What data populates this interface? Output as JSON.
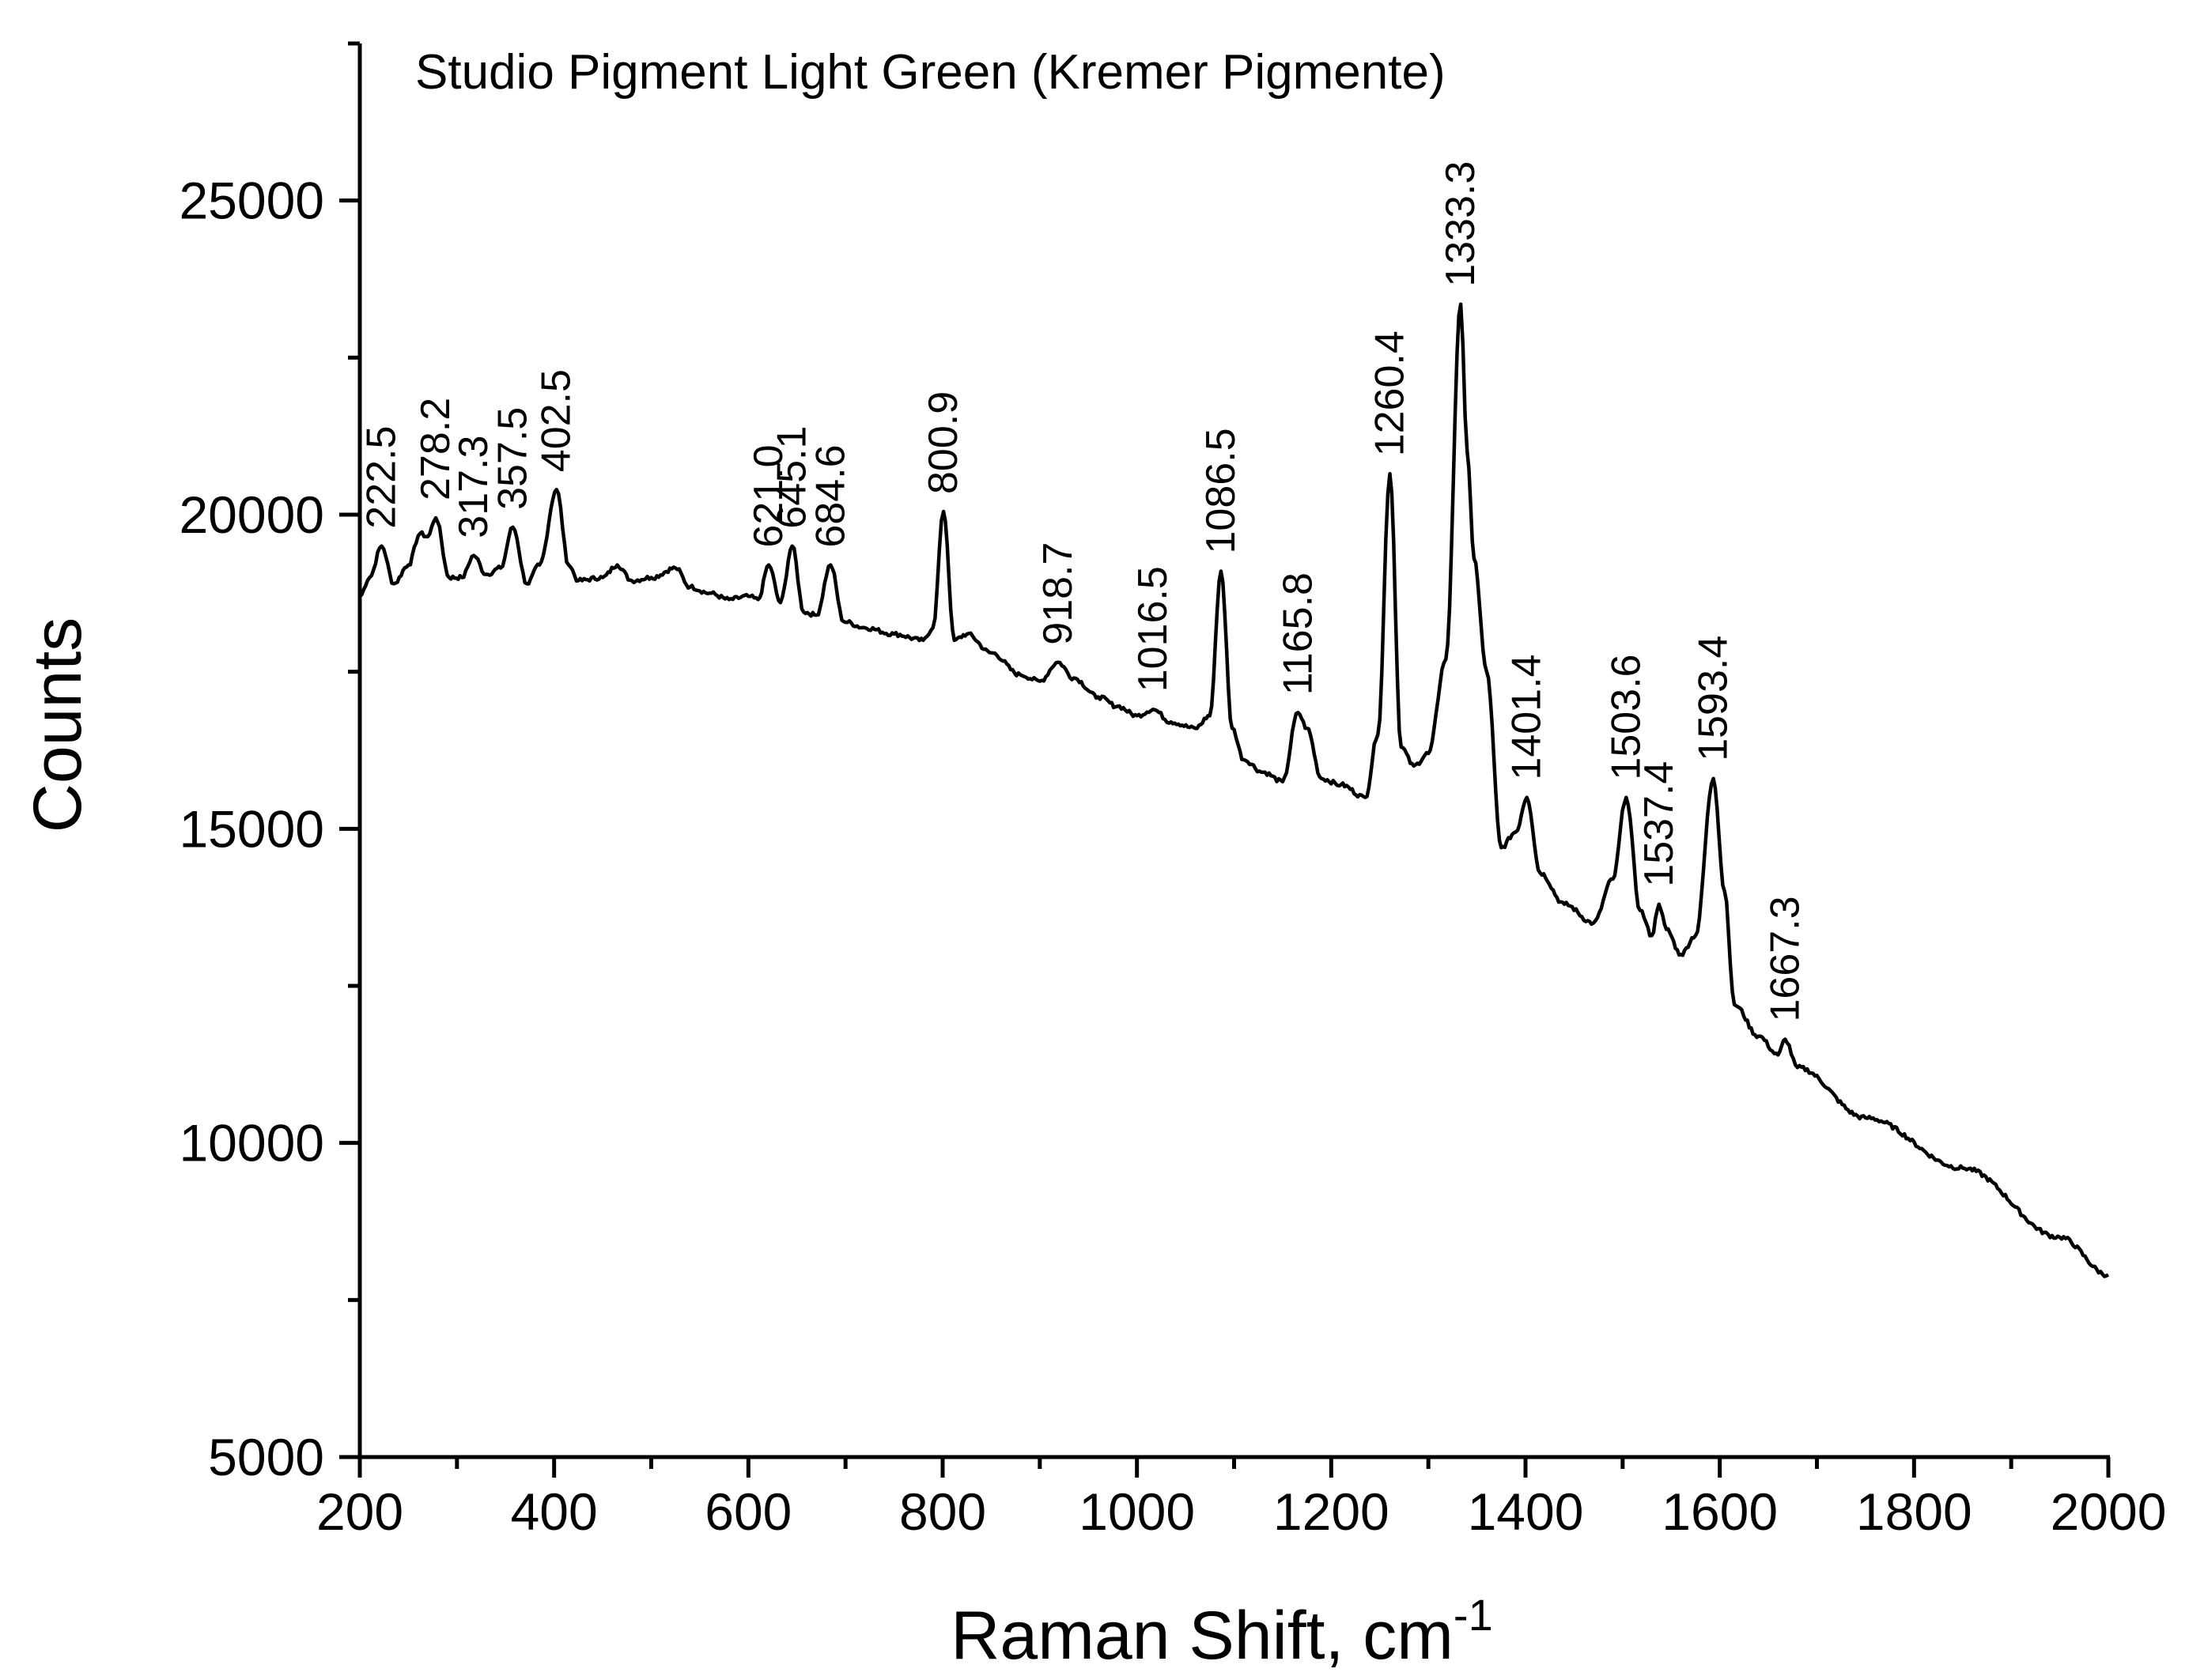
{
  "chart_data": {
    "type": "line",
    "title": "Studio Pigment Light Green (Kremer Pigmente)",
    "xlabel": "Raman Shift, cm",
    "xlabel_superscript": "-1",
    "ylabel": "Counts",
    "xlim": [
      200,
      2000
    ],
    "ylim": [
      5000,
      27500
    ],
    "x_ticks": [
      200,
      400,
      600,
      800,
      1000,
      1200,
      1400,
      1600,
      1800,
      2000
    ],
    "x_tick_labels": [
      "200",
      "400",
      "600",
      "800",
      "1000",
      "1200",
      "1400",
      "1600",
      "1800",
      "2000"
    ],
    "y_ticks": [
      5000,
      10000,
      15000,
      20000,
      25000
    ],
    "y_tick_labels": [
      "5000",
      "10000",
      "15000",
      "20000",
      "25000"
    ],
    "x_minor_step": 100,
    "y_minor_step": 2500,
    "grid": false,
    "legend": "none",
    "line_color": "#000000",
    "series": [
      {
        "x": [
          200,
          210,
          222.5,
          235,
          250,
          262,
          270,
          278.2,
          292,
          305,
          317.3,
          330,
          345,
          357.5,
          372,
          385,
          402.5,
          415,
          425,
          450,
          465,
          480,
          500,
          525,
          540,
          560,
          580,
          600,
          610,
          621,
          633,
          645.1,
          657,
          670,
          684.6,
          698,
          720,
          750,
          780,
          790,
          800.9,
          812,
          825,
          850,
          880,
          900,
          918.7,
          935,
          960,
          980,
          1000,
          1016.5,
          1035,
          1060,
          1075,
          1086.5,
          1098,
          1110,
          1130,
          1150,
          1165.8,
          1175,
          1190,
          1210,
          1235,
          1248,
          1260.4,
          1272,
          1285,
          1300,
          1318,
          1333.3,
          1340,
          1347,
          1360,
          1375,
          1390,
          1401.4,
          1415,
          1440,
          1470,
          1490,
          1503.6,
          1518,
          1530,
          1537.4,
          1545,
          1560,
          1575,
          1593.4,
          1605,
          1615,
          1640,
          1660,
          1667.3,
          1680,
          1750,
          1850,
          1950,
          2000
        ],
        "y": [
          18700,
          19000,
          19500,
          18900,
          19200,
          19700,
          19650,
          19950,
          19000,
          19000,
          19350,
          19050,
          19150,
          19800,
          18900,
          19200,
          20400,
          19200,
          18950,
          19000,
          19200,
          18950,
          19000,
          19150,
          18850,
          18750,
          18650,
          18700,
          18650,
          19200,
          18600,
          19500,
          18450,
          18400,
          19200,
          18300,
          18200,
          18100,
          18000,
          18200,
          20050,
          18000,
          18100,
          17800,
          17450,
          17350,
          17650,
          17400,
          17100,
          16950,
          16800,
          16900,
          16700,
          16600,
          16800,
          19100,
          16600,
          16100,
          15900,
          15750,
          16850,
          16600,
          15800,
          15700,
          15500,
          16500,
          20650,
          16300,
          16000,
          16200,
          17700,
          23350,
          21000,
          19300,
          17500,
          14700,
          14950,
          15500,
          14300,
          13800,
          13500,
          14200,
          15500,
          13700,
          13300,
          13800,
          13400,
          13000,
          13300,
          15800,
          14000,
          12200,
          11700,
          11400,
          11650,
          11200,
          10400,
          9600,
          8500,
          7900
        ]
      }
    ],
    "annotations": [
      {
        "label": "222.5",
        "x": 222.5,
        "y": 19500
      },
      {
        "label": "278.2",
        "x": 278.2,
        "y": 19950
      },
      {
        "label": "317.3",
        "x": 317.3,
        "y": 19350
      },
      {
        "label": "357.5",
        "x": 357.5,
        "y": 19800
      },
      {
        "label": "402.5",
        "x": 402.5,
        "y": 20400
      },
      {
        "label": "621.0",
        "x": 621.0,
        "y": 19200
      },
      {
        "label": "645.1",
        "x": 645.1,
        "y": 19500
      },
      {
        "label": "684.6",
        "x": 684.6,
        "y": 19200
      },
      {
        "label": "800.9",
        "x": 800.9,
        "y": 20050
      },
      {
        "label": "918.7",
        "x": 918.7,
        "y": 17650
      },
      {
        "label": "1016.5",
        "x": 1016.5,
        "y": 16900
      },
      {
        "label": "1086.5",
        "x": 1086.5,
        "y": 19100
      },
      {
        "label": "1165.8",
        "x": 1165.8,
        "y": 16850
      },
      {
        "label": "1260.4",
        "x": 1260.4,
        "y": 20650
      },
      {
        "label": "1333.3",
        "x": 1333.3,
        "y": 23350
      },
      {
        "label": "1401.4",
        "x": 1401.4,
        "y": 15500
      },
      {
        "label": "1503.6",
        "x": 1503.6,
        "y": 15500
      },
      {
        "label": "1537.4",
        "x": 1537.4,
        "y": 13800
      },
      {
        "label": "1593.4",
        "x": 1593.4,
        "y": 15800
      },
      {
        "label": "1667.3",
        "x": 1667.3,
        "y": 11650
      }
    ]
  }
}
